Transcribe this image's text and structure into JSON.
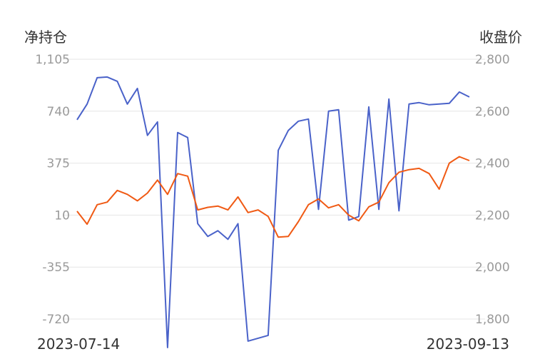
{
  "chart_data": {
    "type": "line",
    "left_axis_title": "净持仓",
    "right_axis_title": "收盘价",
    "x_start_label": "2023-07-14",
    "x_end_label": "2023-09-13",
    "left_ticks": [
      "1,105",
      "740",
      "375",
      "10",
      "-355",
      "-720"
    ],
    "left_range": [
      -720,
      1105
    ],
    "right_ticks": [
      "2,800",
      "2,600",
      "2,400",
      "2,200",
      "2,000",
      "1,800"
    ],
    "right_range": [
      1800,
      2800
    ],
    "grid": true,
    "series": [
      {
        "axis": "left",
        "color": "#4a62c9",
        "values": [
          680,
          790,
          975,
          980,
          950,
          790,
          900,
          570,
          665,
          -920,
          590,
          555,
          -50,
          -140,
          -100,
          -160,
          -50,
          -875,
          -855,
          -835,
          465,
          605,
          670,
          685,
          50,
          740,
          750,
          -25,
          0,
          770,
          50,
          825,
          40,
          790,
          800,
          785,
          790,
          795,
          875,
          840
        ]
      },
      {
        "axis": "right",
        "color": "#f05a14",
        "values": [
          2215,
          2165,
          2240,
          2250,
          2295,
          2280,
          2255,
          2285,
          2335,
          2280,
          2360,
          2350,
          2220,
          2230,
          2235,
          2220,
          2270,
          2210,
          2220,
          2195,
          2115,
          2118,
          2175,
          2240,
          2262,
          2228,
          2240,
          2200,
          2178,
          2232,
          2250,
          2325,
          2365,
          2375,
          2380,
          2360,
          2300,
          2400,
          2425,
          2410
        ]
      }
    ]
  }
}
